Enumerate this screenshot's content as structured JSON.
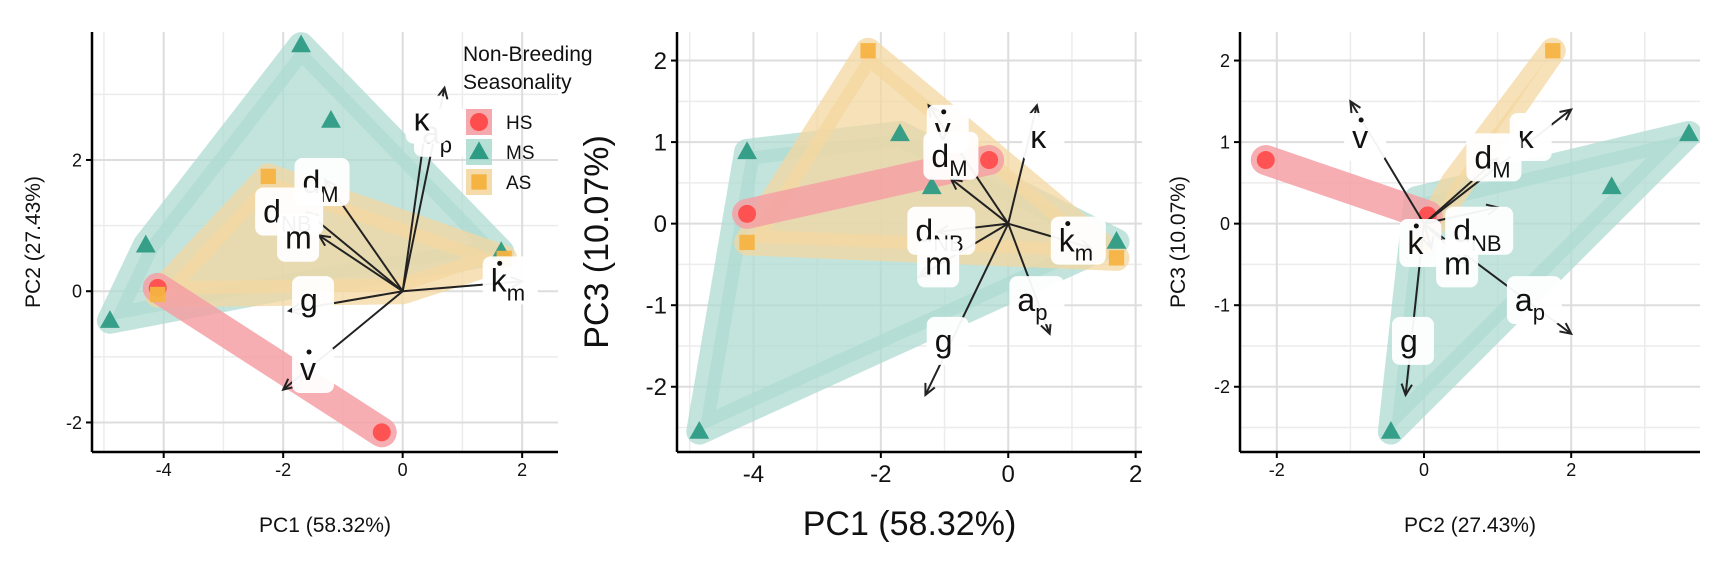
{
  "colors": {
    "HS": "#ff4d4d",
    "MS": "#2e9b84",
    "AS": "#f5b342",
    "hull_HS": "#f4a0a4",
    "hull_MS": "#aedbd2",
    "hull_AS": "#f4d7a0",
    "grid": "#dddddd",
    "arrow": "#333300"
  },
  "legend": {
    "title_line1": "Non-Breeding",
    "title_line2": "Seasonality",
    "items": [
      {
        "key": "HS",
        "label": "HS",
        "shape": "circle"
      },
      {
        "key": "MS",
        "label": "MS",
        "shape": "triangle"
      },
      {
        "key": "AS",
        "label": "AS",
        "shape": "square"
      }
    ]
  },
  "chart_data": [
    {
      "type": "scatter",
      "subtype": "pca-biplot",
      "xlabel": "PC1 (58.32%)",
      "ylabel": "PC2 (27.43%)",
      "xlim": [
        -5.2,
        2.6
      ],
      "ylim": [
        -2.45,
        3.95
      ],
      "xticks": [
        -4,
        -2,
        0,
        2
      ],
      "yticks": [
        -2,
        0,
        2
      ],
      "grid": true,
      "legend_position": "top-right",
      "points": [
        {
          "group": "HS",
          "x": -4.1,
          "y": 0.05
        },
        {
          "group": "HS",
          "x": -0.35,
          "y": -2.15
        },
        {
          "group": "MS",
          "x": -4.9,
          "y": -0.45
        },
        {
          "group": "MS",
          "x": -4.3,
          "y": 0.7
        },
        {
          "group": "MS",
          "x": -1.7,
          "y": 3.75
        },
        {
          "group": "MS",
          "x": -1.2,
          "y": 2.6
        },
        {
          "group": "MS",
          "x": 1.65,
          "y": 0.6
        },
        {
          "group": "AS",
          "x": -4.1,
          "y": -0.05
        },
        {
          "group": "AS",
          "x": -2.25,
          "y": 1.75
        },
        {
          "group": "AS",
          "x": 1.7,
          "y": 0.5
        }
      ],
      "hulls": [
        {
          "group": "MS",
          "points": [
            [
              -4.9,
              -0.45
            ],
            [
              -4.3,
              0.7
            ],
            [
              -1.7,
              3.75
            ],
            [
              1.65,
              0.6
            ],
            [
              -1.75,
              0.1
            ]
          ]
        },
        {
          "group": "AS",
          "points": [
            [
              -4.1,
              -0.05
            ],
            [
              -2.25,
              1.75
            ],
            [
              1.7,
              0.5
            ],
            [
              0,
              0
            ]
          ]
        },
        {
          "group": "HS",
          "points": [
            [
              -4.1,
              0.05
            ],
            [
              -0.35,
              -2.15
            ]
          ]
        }
      ],
      "loadings": [
        {
          "label": "a",
          "sub": "p",
          "dot": false,
          "x": 0.7,
          "y": 3.1,
          "lx": 0.65,
          "ly": 2.4
        },
        {
          "label": "k",
          "sub": "m",
          "dot": true,
          "x": 2.0,
          "y": 0.15,
          "lx": 1.8,
          "ly": 0.15
        },
        {
          "label": "κ",
          "sub": "",
          "dot": false,
          "x": 0.4,
          "y": 2.6,
          "lx": 0.4,
          "ly": 2.6
        },
        {
          "label": "d",
          "sub": "M",
          "dot": false,
          "x": -1.3,
          "y": 1.7,
          "lx": -1.35,
          "ly": 1.65
        },
        {
          "label": "d",
          "sub": "NB",
          "dot": false,
          "x": -1.6,
          "y": 1.2,
          "lx": -1.9,
          "ly": 1.2
        },
        {
          "label": "m",
          "sub": "",
          "dot": false,
          "x": -1.4,
          "y": 0.85,
          "lx": -1.75,
          "ly": 0.8
        },
        {
          "label": "g",
          "sub": "",
          "dot": false,
          "x": -1.9,
          "y": -0.3,
          "lx": -1.5,
          "ly": -0.15
        },
        {
          "label": "v",
          "sub": "",
          "dot": true,
          "x": -2.0,
          "y": -1.5,
          "lx": -1.5,
          "ly": -1.2
        }
      ]
    },
    {
      "type": "scatter",
      "subtype": "pca-biplot",
      "xlabel": "PC1 (58.32%)",
      "ylabel": "PC3 (10.07%)",
      "xlim": [
        -5.2,
        2.1
      ],
      "ylim": [
        -2.8,
        2.35
      ],
      "xticks": [
        -4,
        -2,
        0,
        2
      ],
      "yticks": [
        -2,
        -1,
        0,
        1,
        2
      ],
      "grid": true,
      "points": [
        {
          "group": "HS",
          "x": -4.1,
          "y": 0.12
        },
        {
          "group": "HS",
          "x": -0.3,
          "y": 0.78
        },
        {
          "group": "MS",
          "x": -4.1,
          "y": 0.88
        },
        {
          "group": "MS",
          "x": -1.7,
          "y": 1.1
        },
        {
          "group": "MS",
          "x": -1.2,
          "y": 0.45
        },
        {
          "group": "MS",
          "x": 1.7,
          "y": -0.22
        },
        {
          "group": "MS",
          "x": -4.85,
          "y": -2.55
        },
        {
          "group": "AS",
          "x": -2.2,
          "y": 2.12
        },
        {
          "group": "AS",
          "x": -4.1,
          "y": -0.23
        },
        {
          "group": "AS",
          "x": 1.7,
          "y": -0.42
        }
      ],
      "hulls": [
        {
          "group": "MS",
          "points": [
            [
              -4.85,
              -2.55
            ],
            [
              -4.1,
              0.88
            ],
            [
              -1.7,
              1.1
            ],
            [
              1.7,
              -0.22
            ]
          ]
        },
        {
          "group": "AS",
          "points": [
            [
              -4.1,
              -0.23
            ],
            [
              -2.2,
              2.12
            ],
            [
              1.7,
              -0.42
            ]
          ]
        },
        {
          "group": "HS",
          "points": [
            [
              -4.1,
              0.12
            ],
            [
              -0.3,
              0.78
            ]
          ]
        }
      ],
      "loadings": [
        {
          "label": "κ",
          "sub": "",
          "dot": false,
          "x": 0.45,
          "y": 1.45,
          "lx": 0.55,
          "ly": 1.05
        },
        {
          "label": "k",
          "sub": "m",
          "dot": true,
          "x": 1.3,
          "y": -0.3,
          "lx": 1.1,
          "ly": -0.22
        },
        {
          "label": "a",
          "sub": "p",
          "dot": false,
          "x": 0.65,
          "y": -1.35,
          "lx": 0.45,
          "ly": -0.95
        },
        {
          "label": "v",
          "sub": "",
          "dot": true,
          "x": -1.25,
          "y": 1.45,
          "lx": -0.95,
          "ly": 1.15
        },
        {
          "label": "d",
          "sub": "M",
          "dot": false,
          "x": -0.9,
          "y": 0.55,
          "lx": -0.9,
          "ly": 0.82
        },
        {
          "label": "d",
          "sub": "NB",
          "dot": false,
          "x": -1.1,
          "y": -0.1,
          "lx": -1.05,
          "ly": -0.1
        },
        {
          "label": "m",
          "sub": "",
          "dot": false,
          "x": -1.4,
          "y": -0.65,
          "lx": -1.1,
          "ly": -0.5
        },
        {
          "label": "g",
          "sub": "",
          "dot": false,
          "x": -1.3,
          "y": -2.1,
          "lx": -0.95,
          "ly": -1.45
        }
      ]
    },
    {
      "type": "scatter",
      "subtype": "pca-biplot",
      "xlabel": "PC2 (27.43%)",
      "ylabel": "PC3 (10.07%)",
      "xlim": [
        -2.5,
        3.75
      ],
      "ylim": [
        -2.8,
        2.35
      ],
      "xticks": [
        -2,
        0,
        2
      ],
      "yticks": [
        -2,
        -1,
        0,
        1,
        2
      ],
      "grid": true,
      "points": [
        {
          "group": "HS",
          "x": -2.15,
          "y": 0.78
        },
        {
          "group": "HS",
          "x": 0.05,
          "y": 0.1
        },
        {
          "group": "MS",
          "x": -0.45,
          "y": -2.55
        },
        {
          "group": "MS",
          "x": 2.55,
          "y": 0.45
        },
        {
          "group": "MS",
          "x": 3.6,
          "y": 1.1
        },
        {
          "group": "AS",
          "x": 1.75,
          "y": 2.12
        },
        {
          "group": "AS",
          "x": -0.05,
          "y": -0.23
        }
      ],
      "hulls": [
        {
          "group": "MS",
          "points": [
            [
              -0.45,
              -2.55
            ],
            [
              -0.1,
              0.3
            ],
            [
              3.6,
              1.1
            ]
          ]
        },
        {
          "group": "AS",
          "points": [
            [
              -0.05,
              -0.23
            ],
            [
              0.4,
              0.5
            ],
            [
              1.75,
              2.12
            ]
          ]
        },
        {
          "group": "HS",
          "points": [
            [
              -2.15,
              0.78
            ],
            [
              0.05,
              0.1
            ]
          ]
        }
      ],
      "loadings": [
        {
          "label": "v",
          "sub": "",
          "dot": true,
          "x": -1.0,
          "y": 1.5,
          "lx": -0.8,
          "ly": 1.05
        },
        {
          "label": "κ",
          "sub": "",
          "dot": false,
          "x": 2.0,
          "y": 1.4,
          "lx": 1.45,
          "ly": 1.05
        },
        {
          "label": "d",
          "sub": "M",
          "dot": false,
          "x": 1.0,
          "y": 0.8,
          "lx": 0.95,
          "ly": 0.8
        },
        {
          "label": "d",
          "sub": "NB",
          "dot": false,
          "x": 1.0,
          "y": 0.2,
          "lx": 0.75,
          "ly": -0.1
        },
        {
          "label": "k",
          "sub": "",
          "dot": true,
          "x": 0.1,
          "y": -0.3,
          "lx": -0.05,
          "ly": -0.25
        },
        {
          "label": "m",
          "sub": "",
          "dot": false,
          "x": 0.6,
          "y": -0.5,
          "lx": 0.45,
          "ly": -0.5
        },
        {
          "label": "a",
          "sub": "p",
          "dot": false,
          "x": 2.0,
          "y": -1.35,
          "lx": 1.5,
          "ly": -0.95
        },
        {
          "label": "g",
          "sub": "",
          "dot": false,
          "x": -0.25,
          "y": -2.1,
          "lx": -0.15,
          "ly": -1.45
        }
      ]
    }
  ]
}
